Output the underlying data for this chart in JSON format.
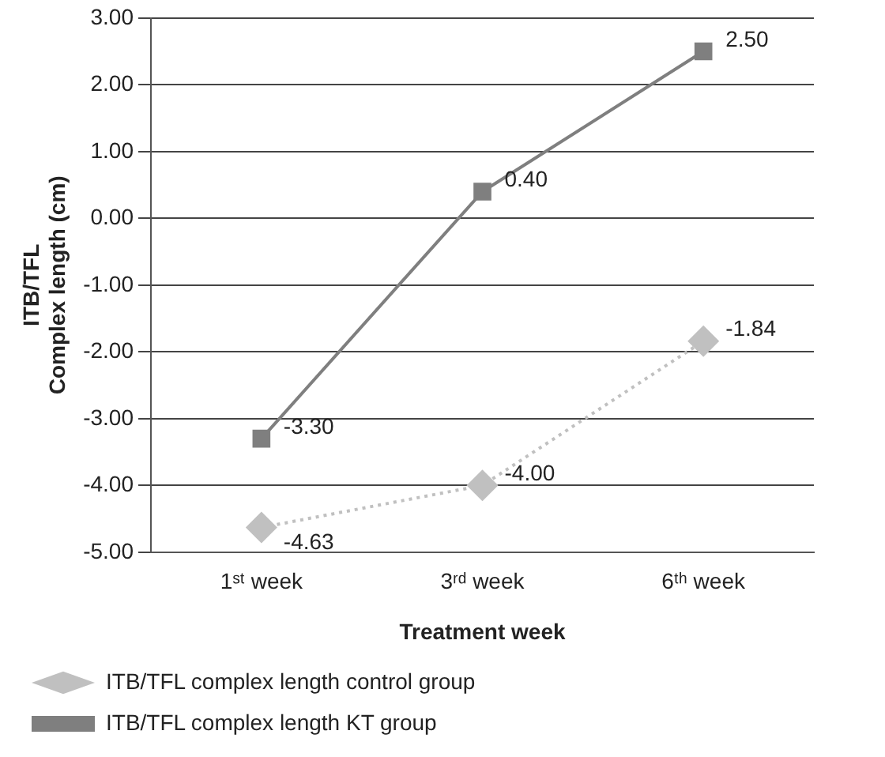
{
  "chart_data": {
    "type": "line",
    "xlabel": "Treatment week",
    "ylabel": "ITB/TFL\nComplex length (cm)",
    "categories": [
      "1ˢᵗ week",
      "3ʳᵈ week",
      "6ᵗʰ week"
    ],
    "ylim": [
      -5,
      3
    ],
    "yticks": [
      {
        "value": -5,
        "label": "-5.00"
      },
      {
        "value": -4,
        "label": "-4.00"
      },
      {
        "value": -3,
        "label": "-3.00"
      },
      {
        "value": -2,
        "label": "-2.00"
      },
      {
        "value": -1,
        "label": "-1.00"
      },
      {
        "value": 0,
        "label": "0.00"
      },
      {
        "value": 1,
        "label": "1.00"
      },
      {
        "value": 2,
        "label": "2.00"
      },
      {
        "value": 3,
        "label": "3.00"
      }
    ],
    "grid": "y",
    "legend": "bottom",
    "series": [
      {
        "name": "ITB/TFL complex length control group",
        "color": "#c0c0c0",
        "values": [
          -4.63,
          -4.0,
          -1.84
        ],
        "value_labels": [
          "-4.63",
          "-4.00",
          "-1.84"
        ],
        "marker": "diamond",
        "line_style": "dotted"
      },
      {
        "name": "ITB/TFL complex length KT group",
        "color": "#7f7f7f",
        "values": [
          -3.3,
          0.4,
          2.5
        ],
        "value_labels": [
          "-3.30",
          "0.40",
          "2.50"
        ],
        "marker": "square",
        "line_style": "solid"
      }
    ]
  }
}
